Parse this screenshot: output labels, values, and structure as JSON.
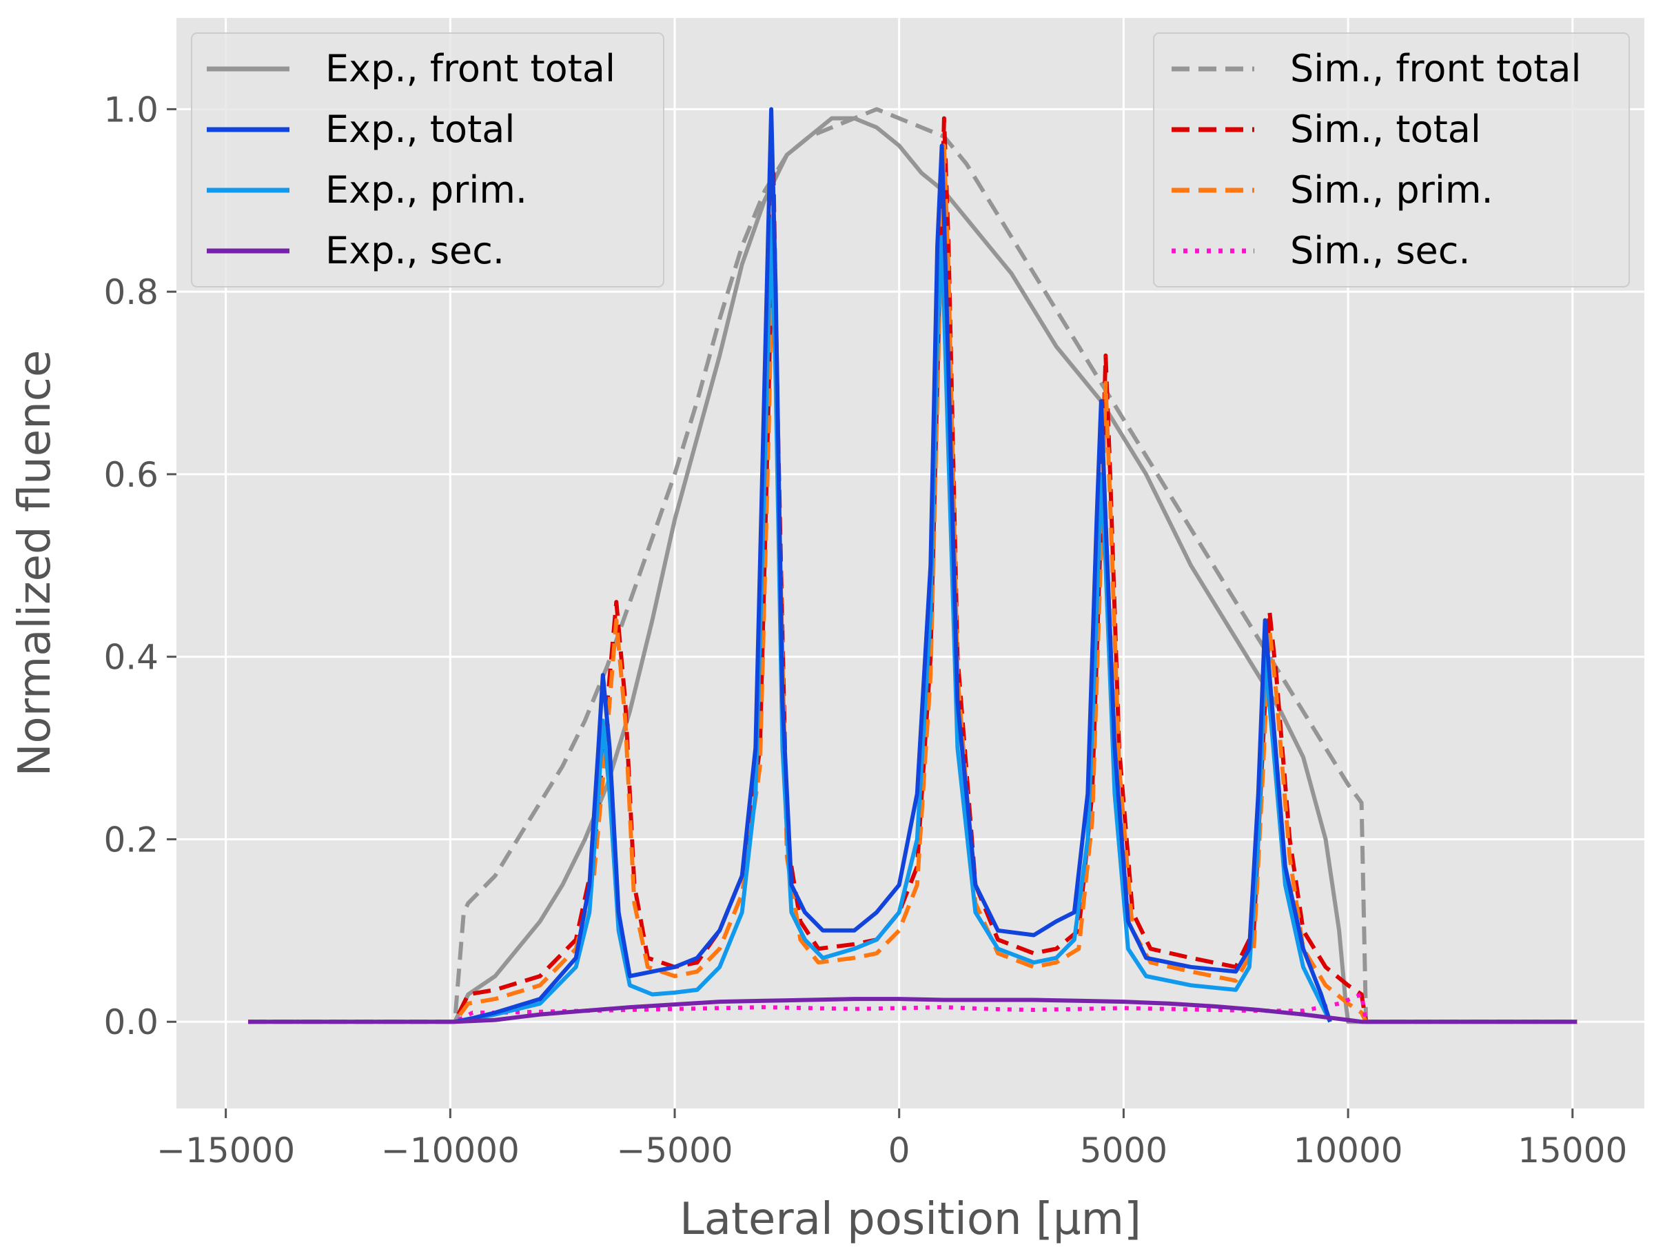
{
  "chart_data": {
    "type": "line",
    "title": "",
    "xlabel": "Lateral position [μm]",
    "ylabel": "Normalized fluence",
    "xlim": [
      -16100,
      16600
    ],
    "ylim": [
      -0.095,
      1.1
    ],
    "xticks": [
      -15000,
      -10000,
      -5000,
      0,
      5000,
      10000,
      15000
    ],
    "xtick_labels": [
      "−15000",
      "−10000",
      "−5000",
      "0",
      "5000",
      "10000",
      "15000"
    ],
    "yticks": [
      0.0,
      0.2,
      0.4,
      0.6,
      0.8,
      1.0
    ],
    "ytick_labels": [
      "0.0",
      "0.2",
      "0.4",
      "0.6",
      "0.8",
      "1.0"
    ],
    "grid": true,
    "colors": {
      "plot_bg": "#e5e5e5",
      "grid": "#ffffff",
      "axis_text": "#555555"
    },
    "legend_left": {
      "placement": "top-left",
      "entries": [
        "Exp., front total",
        "Exp., total",
        "Exp., prim.",
        "Exp., sec."
      ]
    },
    "legend_right": {
      "placement": "top-right",
      "entries": [
        "Sim., front total",
        "Sim., total",
        "Sim., prim.",
        "Sim., sec."
      ]
    },
    "series": [
      {
        "name": "Exp., front total",
        "color": "#959595",
        "style": "solid",
        "x": [
          -14500,
          -9900,
          -9600,
          -9000,
          -8500,
          -8000,
          -7500,
          -7000,
          -6500,
          -6000,
          -5500,
          -5000,
          -4500,
          -4000,
          -3500,
          -3000,
          -2500,
          -2000,
          -1500,
          -1000,
          -500,
          0,
          500,
          1000,
          1500,
          2000,
          2500,
          3000,
          3500,
          4000,
          4500,
          5000,
          5500,
          6000,
          6500,
          7000,
          7500,
          8000,
          8500,
          9000,
          9500,
          9800,
          9950,
          10000,
          15100
        ],
        "y": [
          0,
          0,
          0.03,
          0.05,
          0.08,
          0.11,
          0.15,
          0.2,
          0.26,
          0.34,
          0.44,
          0.55,
          0.64,
          0.73,
          0.83,
          0.9,
          0.95,
          0.97,
          0.99,
          0.99,
          0.98,
          0.96,
          0.93,
          0.91,
          0.88,
          0.85,
          0.82,
          0.78,
          0.74,
          0.71,
          0.68,
          0.64,
          0.6,
          0.55,
          0.5,
          0.46,
          0.42,
          0.38,
          0.34,
          0.29,
          0.2,
          0.1,
          0.02,
          0,
          0
        ]
      },
      {
        "name": "Sim., front total",
        "color": "#959595",
        "style": "dashed",
        "x": [
          -14500,
          -9900,
          -9700,
          -9600,
          -9000,
          -8500,
          -8000,
          -7500,
          -7000,
          -6500,
          -6000,
          -5500,
          -5000,
          -4500,
          -4000,
          -3500,
          -3000,
          -2500,
          -2000,
          -1500,
          -1000,
          -500,
          0,
          500,
          1000,
          1500,
          2000,
          2500,
          3000,
          3500,
          4000,
          4500,
          5000,
          5500,
          6000,
          6500,
          7000,
          7500,
          8000,
          8500,
          9000,
          9500,
          10000,
          10300,
          10400,
          15100
        ],
        "y": [
          0,
          0,
          0.12,
          0.13,
          0.16,
          0.2,
          0.24,
          0.28,
          0.33,
          0.39,
          0.46,
          0.53,
          0.6,
          0.68,
          0.77,
          0.85,
          0.91,
          0.95,
          0.97,
          0.98,
          0.99,
          1.0,
          0.99,
          0.98,
          0.97,
          0.94,
          0.9,
          0.86,
          0.82,
          0.78,
          0.74,
          0.7,
          0.66,
          0.62,
          0.58,
          0.54,
          0.5,
          0.46,
          0.42,
          0.38,
          0.34,
          0.3,
          0.26,
          0.24,
          0,
          0
        ]
      },
      {
        "name": "Sim., total",
        "color": "#dd0000",
        "style": "dashed",
        "x": [
          -14500,
          -9900,
          -9600,
          -9000,
          -8000,
          -7200,
          -6800,
          -6500,
          -6300,
          -6100,
          -5900,
          -5600,
          -5000,
          -4500,
          -4000,
          -3500,
          -3100,
          -2900,
          -2800,
          -2700,
          -2500,
          -2200,
          -1800,
          -1000,
          -500,
          0,
          400,
          700,
          900,
          1000,
          1100,
          1300,
          1700,
          2200,
          3000,
          3500,
          4000,
          4300,
          4500,
          4600,
          4700,
          4900,
          5200,
          5600,
          6500,
          7500,
          7900,
          8100,
          8250,
          8400,
          8700,
          9000,
          9500,
          10000,
          10300,
          10400,
          15100
        ],
        "y": [
          0,
          0,
          0.03,
          0.035,
          0.05,
          0.09,
          0.18,
          0.35,
          0.46,
          0.35,
          0.15,
          0.07,
          0.06,
          0.065,
          0.1,
          0.16,
          0.3,
          0.7,
          0.93,
          0.65,
          0.2,
          0.11,
          0.08,
          0.085,
          0.09,
          0.12,
          0.17,
          0.4,
          0.8,
          0.99,
          0.85,
          0.4,
          0.15,
          0.09,
          0.075,
          0.08,
          0.1,
          0.25,
          0.55,
          0.73,
          0.6,
          0.3,
          0.12,
          0.08,
          0.07,
          0.06,
          0.1,
          0.3,
          0.45,
          0.38,
          0.2,
          0.1,
          0.06,
          0.04,
          0.03,
          0,
          0
        ]
      },
      {
        "name": "Sim., prim.",
        "color": "#ff7711",
        "style": "dashed",
        "x": [
          -14500,
          -9900,
          -9600,
          -9000,
          -8000,
          -7200,
          -6800,
          -6500,
          -6300,
          -6100,
          -5900,
          -5600,
          -5000,
          -4500,
          -4000,
          -3500,
          -3100,
          -2900,
          -2800,
          -2700,
          -2500,
          -2200,
          -1800,
          -1000,
          -500,
          0,
          400,
          700,
          900,
          1000,
          1100,
          1300,
          1700,
          2200,
          3000,
          3500,
          4000,
          4300,
          4500,
          4600,
          4700,
          4900,
          5200,
          5600,
          6500,
          7500,
          7900,
          8100,
          8250,
          8400,
          8700,
          9000,
          9500,
          10000,
          10300,
          10400,
          15100
        ],
        "y": [
          0,
          0,
          0.02,
          0.025,
          0.04,
          0.08,
          0.16,
          0.32,
          0.44,
          0.33,
          0.13,
          0.06,
          0.05,
          0.055,
          0.08,
          0.14,
          0.28,
          0.66,
          0.9,
          0.62,
          0.18,
          0.09,
          0.065,
          0.07,
          0.075,
          0.1,
          0.15,
          0.38,
          0.78,
          0.96,
          0.82,
          0.38,
          0.13,
          0.075,
          0.06,
          0.065,
          0.08,
          0.22,
          0.52,
          0.7,
          0.57,
          0.28,
          0.1,
          0.065,
          0.055,
          0.045,
          0.08,
          0.27,
          0.43,
          0.36,
          0.18,
          0.08,
          0.04,
          0.02,
          0.01,
          0,
          0
        ]
      },
      {
        "name": "Sim., sec.",
        "color": "#ff11cc",
        "style": "dotted",
        "x": [
          -14500,
          -9900,
          -9500,
          -9000,
          -8000,
          -7000,
          -6000,
          -5000,
          -4000,
          -3000,
          -2000,
          -1000,
          0,
          1000,
          2000,
          3000,
          4000,
          5000,
          6000,
          7000,
          8000,
          9000,
          9800,
          10300,
          10400,
          15100
        ],
        "y": [
          0,
          0,
          0.01,
          0.01,
          0.011,
          0.012,
          0.013,
          0.014,
          0.015,
          0.016,
          0.015,
          0.014,
          0.015,
          0.016,
          0.014,
          0.013,
          0.014,
          0.015,
          0.014,
          0.013,
          0.012,
          0.012,
          0.02,
          0.03,
          0,
          0
        ]
      },
      {
        "name": "Exp., prim.",
        "color": "#1199ee",
        "style": "solid",
        "x": [
          -9900,
          -9500,
          -9000,
          -8000,
          -7200,
          -6900,
          -6700,
          -6600,
          -6450,
          -6250,
          -6000,
          -5500,
          -5000,
          -4500,
          -4000,
          -3500,
          -3200,
          -3000,
          -2850,
          -2750,
          -2600,
          -2400,
          -2100,
          -1700,
          -1000,
          -500,
          0,
          400,
          700,
          850,
          950,
          1050,
          1300,
          1700,
          2200,
          3000,
          3500,
          3900,
          4200,
          4400,
          4500,
          4600,
          4800,
          5100,
          5500,
          6500,
          7500,
          7800,
          8000,
          8150,
          8300,
          8600,
          9000,
          9400,
          9600
        ],
        "y": [
          0,
          0.003,
          0.008,
          0.02,
          0.06,
          0.12,
          0.25,
          0.33,
          0.25,
          0.1,
          0.04,
          0.03,
          0.032,
          0.035,
          0.06,
          0.12,
          0.25,
          0.6,
          0.88,
          0.7,
          0.3,
          0.12,
          0.09,
          0.07,
          0.08,
          0.09,
          0.12,
          0.2,
          0.45,
          0.75,
          0.86,
          0.7,
          0.3,
          0.12,
          0.08,
          0.065,
          0.07,
          0.09,
          0.2,
          0.45,
          0.6,
          0.5,
          0.25,
          0.08,
          0.05,
          0.04,
          0.035,
          0.06,
          0.2,
          0.4,
          0.32,
          0.15,
          0.06,
          0.02,
          0
        ]
      },
      {
        "name": "Exp., total",
        "color": "#1144dd",
        "style": "solid",
        "x": [
          -9900,
          -9500,
          -9000,
          -8000,
          -7200,
          -6900,
          -6700,
          -6600,
          -6450,
          -6250,
          -6000,
          -5500,
          -5000,
          -4500,
          -4000,
          -3500,
          -3200,
          -3000,
          -2850,
          -2750,
          -2600,
          -2400,
          -2100,
          -1700,
          -1000,
          -500,
          0,
          400,
          700,
          850,
          950,
          1050,
          1300,
          1700,
          2200,
          3000,
          3500,
          3900,
          4200,
          4400,
          4500,
          4600,
          4800,
          5100,
          5500,
          6500,
          7500,
          7800,
          8000,
          8150,
          8300,
          8600,
          9000,
          9400,
          9600
        ],
        "y": [
          0,
          0.004,
          0.01,
          0.025,
          0.07,
          0.15,
          0.3,
          0.38,
          0.3,
          0.12,
          0.05,
          0.055,
          0.06,
          0.07,
          0.1,
          0.16,
          0.3,
          0.7,
          1.0,
          0.8,
          0.35,
          0.15,
          0.12,
          0.1,
          0.1,
          0.12,
          0.15,
          0.25,
          0.5,
          0.85,
          0.96,
          0.8,
          0.35,
          0.15,
          0.1,
          0.095,
          0.11,
          0.12,
          0.25,
          0.55,
          0.68,
          0.55,
          0.3,
          0.11,
          0.07,
          0.06,
          0.055,
          0.08,
          0.25,
          0.44,
          0.35,
          0.17,
          0.08,
          0.03,
          0
        ]
      },
      {
        "name": "Exp., sec.",
        "color": "#7722aa",
        "style": "solid",
        "x": [
          -14500,
          -9900,
          -9000,
          -8000,
          -7000,
          -6000,
          -5000,
          -4000,
          -3000,
          -2000,
          -1000,
          0,
          1000,
          2000,
          3000,
          4000,
          5000,
          6000,
          7000,
          8000,
          9000,
          9500,
          10000,
          10300,
          15100
        ],
        "y": [
          0,
          0,
          0.002,
          0.008,
          0.012,
          0.016,
          0.019,
          0.022,
          0.023,
          0.024,
          0.025,
          0.025,
          0.024,
          0.024,
          0.024,
          0.023,
          0.022,
          0.02,
          0.017,
          0.013,
          0.008,
          0.005,
          0.002,
          0,
          0
        ]
      }
    ]
  }
}
